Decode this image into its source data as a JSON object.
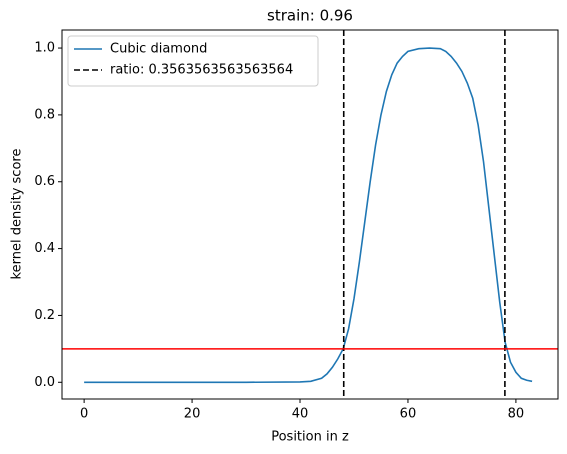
{
  "chart_data": {
    "type": "line",
    "title": "strain: 0.96",
    "xlabel": "Position in z",
    "ylabel": "kernel density score",
    "xlim": [
      -4.1,
      87.8
    ],
    "ylim": [
      -0.05,
      1.054
    ],
    "xticks": [
      0,
      20,
      40,
      60,
      80
    ],
    "yticks": [
      {
        "value": 0,
        "label": "0.0"
      },
      0.2,
      0.4,
      0.6,
      0.8,
      {
        "value": 1,
        "label": "1.0"
      }
    ],
    "legend": "upper left",
    "series": [
      {
        "name": "Cubic diamond",
        "color": "#1f77b4",
        "x": [
          0,
          10,
          20,
          30,
          40,
          42,
          44,
          45,
          46,
          47,
          48,
          49,
          50,
          51,
          52,
          53,
          54,
          55,
          56,
          57,
          58,
          59,
          60,
          62,
          64,
          66,
          67,
          68,
          69,
          70,
          71,
          72,
          73,
          74,
          75,
          76,
          77,
          78,
          79,
          80,
          81,
          82,
          83
        ],
        "values": [
          0,
          0,
          0,
          0,
          0.001,
          0.003,
          0.012,
          0.025,
          0.045,
          0.07,
          0.1,
          0.16,
          0.25,
          0.36,
          0.48,
          0.6,
          0.71,
          0.8,
          0.87,
          0.92,
          0.955,
          0.975,
          0.99,
          0.998,
          1.0,
          0.998,
          0.99,
          0.975,
          0.955,
          0.93,
          0.895,
          0.85,
          0.77,
          0.66,
          0.52,
          0.38,
          0.24,
          0.12,
          0.06,
          0.03,
          0.012,
          0.006,
          0.003
        ]
      }
    ],
    "vlines": {
      "name": "ratio: 0.3563563563563564",
      "color": "#000000",
      "x": [
        48.1,
        77.96
      ]
    },
    "hline": {
      "color": "#ff0000",
      "y": 0.1
    }
  }
}
